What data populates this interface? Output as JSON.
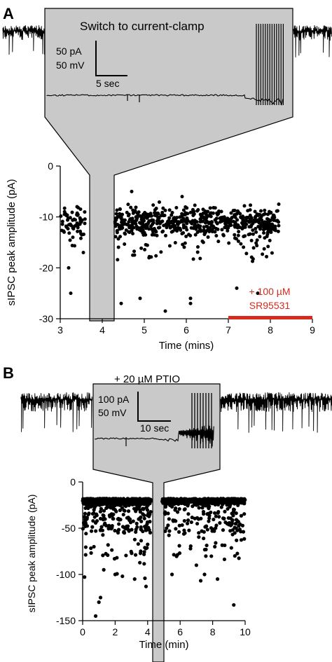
{
  "panels": {
    "a": {
      "label": "A",
      "inset_title": "Switch to current-clamp",
      "scalebar": {
        "amp": "50 pA",
        "volt": "50 mV",
        "time": "5 sec"
      },
      "drug": {
        "line1": "+ 100 µM",
        "line2": "SR95531",
        "color": "#d42b1e"
      }
    },
    "b": {
      "label": "B",
      "inset_title": "+ 20 µM PTIO",
      "scalebar": {
        "amp": "100 pA",
        "volt": "50 mV",
        "time": "10 sec"
      }
    }
  },
  "colors": {
    "inset_fill": "#c9c9c9",
    "ink": "#000000",
    "drug_bar": "#d42b1e"
  },
  "chart_data": [
    {
      "type": "scatter",
      "panel": "A",
      "xlabel": "Time (mins)",
      "ylabel": "sIPSC peak amplitude (pA)",
      "xlim": [
        3,
        9
      ],
      "ylim": [
        -30,
        0
      ],
      "xticks": [
        "3",
        "4",
        "5",
        "6",
        "7",
        "8",
        "9"
      ],
      "yticks": [
        "0",
        "-10",
        "-20",
        "-30"
      ],
      "drug_application": {
        "start": 7,
        "end": 9
      },
      "cluster_ranges": [
        [
          3.0,
          3.6
        ],
        [
          4.3,
          8.2
        ]
      ],
      "points_sample": [
        {
          "x": 3.1,
          "y": -9.5
        },
        {
          "x": 3.15,
          "y": -12
        },
        {
          "x": 3.2,
          "y": -20
        },
        {
          "x": 3.25,
          "y": -25
        },
        {
          "x": 3.3,
          "y": -14
        },
        {
          "x": 3.4,
          "y": -8
        },
        {
          "x": 3.5,
          "y": -11
        },
        {
          "x": 3.55,
          "y": -17
        },
        {
          "x": 4.45,
          "y": -27
        },
        {
          "x": 4.9,
          "y": -26
        },
        {
          "x": 5.5,
          "y": -28.5
        },
        {
          "x": 6.1,
          "y": -26
        },
        {
          "x": 6.1,
          "y": -27
        },
        {
          "x": 7.2,
          "y": -24
        },
        {
          "x": 7.7,
          "y": -25
        },
        {
          "x": 4.7,
          "y": -5
        },
        {
          "x": 5.9,
          "y": -6
        },
        {
          "x": 8.2,
          "y": -7.5
        }
      ]
    },
    {
      "type": "scatter",
      "panel": "B",
      "xlabel": "Time (min)",
      "ylabel": "sIPSC peak amplitude (pA)",
      "xlim": [
        0,
        10
      ],
      "ylim": [
        -150,
        0
      ],
      "xticks": [
        "0",
        "2",
        "4",
        "6",
        "8",
        "10"
      ],
      "yticks": [
        "0",
        "-50",
        "-100",
        "-150"
      ],
      "cluster_ranges": [
        [
          0.0,
          4.2
        ],
        [
          4.9,
          10.0
        ]
      ],
      "points_sample": [
        {
          "x": 0.8,
          "y": -145
        },
        {
          "x": 1.0,
          "y": -130
        },
        {
          "x": 1.1,
          "y": -125
        },
        {
          "x": 1.3,
          "y": -95
        },
        {
          "x": 2.0,
          "y": -100
        },
        {
          "x": 3.2,
          "y": -105
        },
        {
          "x": 3.9,
          "y": -113
        },
        {
          "x": 5.5,
          "y": -100
        },
        {
          "x": 7.0,
          "y": -90
        },
        {
          "x": 7.5,
          "y": -100
        },
        {
          "x": 8.3,
          "y": -105
        },
        {
          "x": 9.3,
          "y": -133
        }
      ]
    }
  ]
}
